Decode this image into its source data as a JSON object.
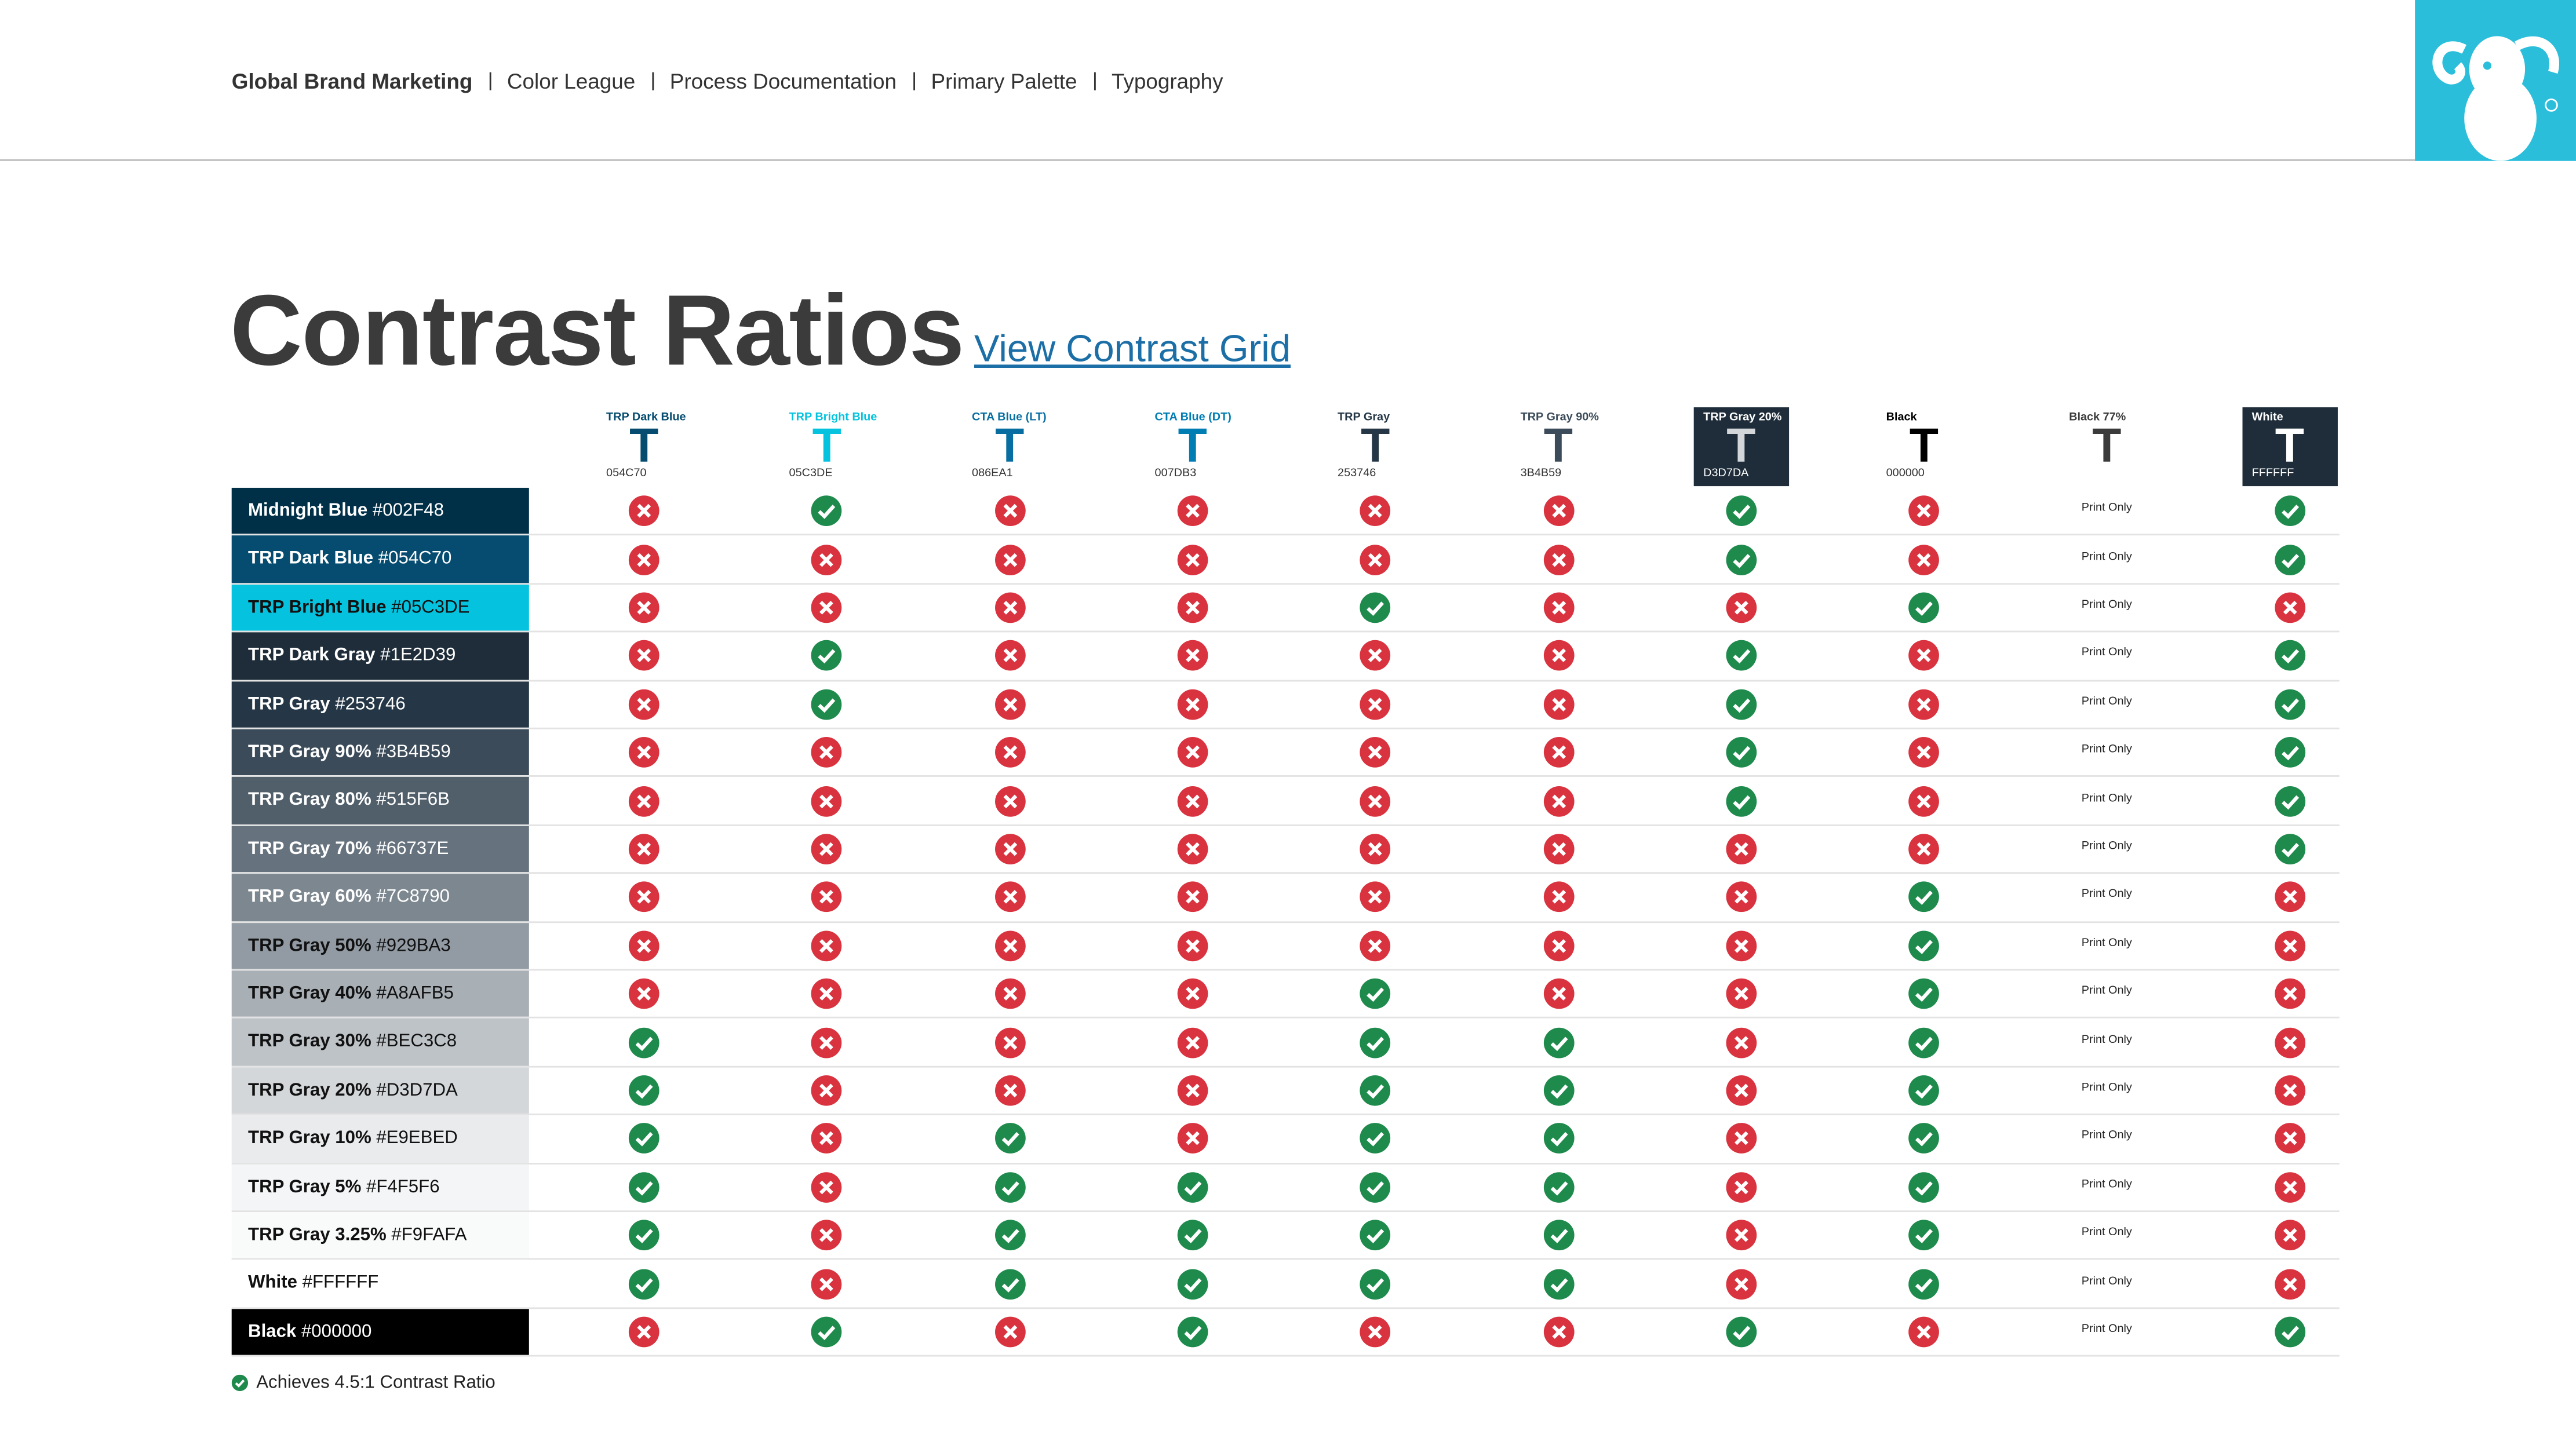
{
  "header": {
    "nav": [
      "Global Brand Marketing",
      "Color League",
      "Process Documentation",
      "Primary Palette",
      "Typography"
    ]
  },
  "title": "Contrast Ratios",
  "link": "View Contrast Grid",
  "table": {
    "columns": [
      {
        "name": "TRP Dark Blue",
        "hex": "054C70"
      },
      {
        "name": "TRP Bright Blue",
        "hex": "05C3DE"
      },
      {
        "name": "CTA Blue (LT)",
        "hex": "086EA1"
      },
      {
        "name": "CTA Blue (DT)",
        "hex": "007DB3"
      },
      {
        "name": "TRP Gray",
        "hex": "253746"
      },
      {
        "name": "TRP Gray 90%",
        "hex": "3B4B59"
      },
      {
        "name": "TRP Gray 20%",
        "hex": "D3D7DA"
      },
      {
        "name": "Black",
        "hex": "000000"
      },
      {
        "name": "Black 77%",
        "color": "#3B3B3B"
      },
      {
        "name": "White",
        "hex": "FFFFFF"
      }
    ],
    "rows": [
      {
        "name": "Midnight Blue",
        "hex": "#002F48"
      },
      {
        "name": "TRP Dark Blue",
        "hex": "#054C70"
      },
      {
        "name": "TRP Bright Blue",
        "hex": "#05C3DE"
      },
      {
        "name": "TRP Dark Gray",
        "hex": "#1E2D39"
      },
      {
        "name": "TRP Gray",
        "hex": "#253746"
      },
      {
        "name": "TRP Gray 90%",
        "hex": "#3B4B59"
      },
      {
        "name": "TRP Gray 80%",
        "hex": "#515F6B"
      },
      {
        "name": "TRP Gray 70%",
        "hex": "#66737E"
      },
      {
        "name": "TRP Gray 60%",
        "hex": "#7C8790"
      },
      {
        "name": "TRP Gray 50%",
        "hex": "#929BA3"
      },
      {
        "name": "TRP Gray 40%",
        "hex": "#A8AFB5"
      },
      {
        "name": "TRP Gray 30%",
        "hex": "#BEC3C8"
      },
      {
        "name": "TRP Gray 20%",
        "hex": "#D3D7DA"
      },
      {
        "name": "TRP Gray 10%",
        "hex": "#E9EBED"
      },
      {
        "name": "TRP Gray 5%",
        "hex": "#F4F5F6"
      },
      {
        "name": "TRP Gray 3.25%",
        "hex": "#F9FAFA"
      },
      {
        "name": "White",
        "hex": "#FFFFFF"
      },
      {
        "name": "Black",
        "hex": "#000000"
      }
    ],
    "cells": [
      [
        false,
        true,
        false,
        false,
        false,
        false,
        true,
        false,
        "Print Only",
        true
      ],
      [
        false,
        false,
        false,
        false,
        false,
        false,
        true,
        false,
        "Print Only",
        true
      ],
      [
        false,
        false,
        false,
        false,
        true,
        false,
        false,
        true,
        "Print Only",
        false
      ],
      [
        false,
        true,
        false,
        false,
        false,
        false,
        true,
        false,
        "Print Only",
        true
      ],
      [
        false,
        true,
        false,
        false,
        false,
        false,
        true,
        false,
        "Print Only",
        true
      ],
      [
        false,
        false,
        false,
        false,
        false,
        false,
        true,
        false,
        "Print Only",
        true
      ],
      [
        false,
        false,
        false,
        false,
        false,
        false,
        true,
        false,
        "Print Only",
        true
      ],
      [
        false,
        false,
        false,
        false,
        false,
        false,
        false,
        false,
        "Print Only",
        true
      ],
      [
        false,
        false,
        false,
        false,
        false,
        false,
        false,
        true,
        "Print Only",
        false
      ],
      [
        false,
        false,
        false,
        false,
        false,
        false,
        false,
        true,
        "Print Only",
        false
      ],
      [
        false,
        false,
        false,
        false,
        true,
        false,
        false,
        true,
        "Print Only",
        false
      ],
      [
        true,
        false,
        false,
        false,
        true,
        true,
        false,
        true,
        "Print Only",
        false
      ],
      [
        true,
        false,
        false,
        false,
        true,
        true,
        false,
        true,
        "Print Only",
        false
      ],
      [
        true,
        false,
        true,
        false,
        true,
        true,
        false,
        true,
        "Print Only",
        false
      ],
      [
        true,
        false,
        true,
        true,
        true,
        true,
        false,
        true,
        "Print Only",
        false
      ],
      [
        true,
        false,
        true,
        true,
        true,
        true,
        false,
        true,
        "Print Only",
        false
      ],
      [
        true,
        false,
        true,
        true,
        true,
        true,
        false,
        true,
        "Print Only",
        false
      ],
      [
        false,
        true,
        false,
        true,
        false,
        false,
        true,
        false,
        "Print Only",
        true
      ]
    ]
  },
  "legend": "Achieves 4.5:1 Contrast Ratio"
}
